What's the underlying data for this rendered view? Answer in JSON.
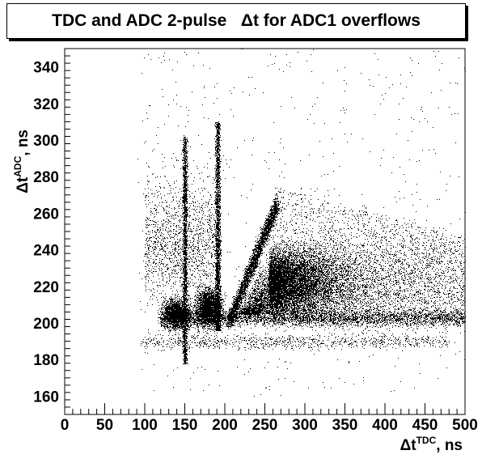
{
  "title": "TDC and ADC 2-pulse   Δt for ADC1 overflows",
  "chart_data": {
    "type": "scatter",
    "title": "TDC and ADC 2-pulse   Δt for ADC1 overflows",
    "xlabel": "Δt",
    "xlabel_sup": "TDC",
    "xlabel_suffix": ", ns",
    "ylabel": "Δt",
    "ylabel_sup": "ADC",
    "ylabel_suffix": ", ns",
    "xlim": [
      0,
      500
    ],
    "ylim": [
      150,
      350
    ],
    "x_ticks": [
      0,
      50,
      100,
      150,
      200,
      250,
      300,
      350,
      400,
      450,
      500
    ],
    "y_ticks": [
      160,
      180,
      200,
      220,
      240,
      260,
      280,
      300,
      320,
      340
    ],
    "grid": false,
    "marker_color": "#000000",
    "density_regions": [
      {
        "name": "main-cluster",
        "x": [
          255,
          500
        ],
        "y": [
          200,
          250
        ],
        "center": [
          260,
          225
        ],
        "density": "high"
      },
      {
        "name": "band-150",
        "x": [
          148,
          153
        ],
        "y": [
          175,
          302
        ],
        "density": "high"
      },
      {
        "name": "band-190",
        "x": [
          188,
          195
        ],
        "y": [
          195,
          310
        ],
        "density": "high"
      },
      {
        "name": "diagonal-ridge",
        "from": [
          205,
          200
        ],
        "to": [
          265,
          265
        ],
        "density": "high"
      },
      {
        "name": "upper-left-cloud",
        "x": [
          95,
          200
        ],
        "y": [
          220,
          290
        ],
        "density": "medium"
      },
      {
        "name": "floor-200",
        "x": [
          120,
          500
        ],
        "y": [
          198,
          210
        ],
        "density": "medium"
      },
      {
        "name": "strip-190",
        "x": [
          95,
          480
        ],
        "y": [
          186,
          194
        ],
        "density": "low"
      }
    ]
  }
}
